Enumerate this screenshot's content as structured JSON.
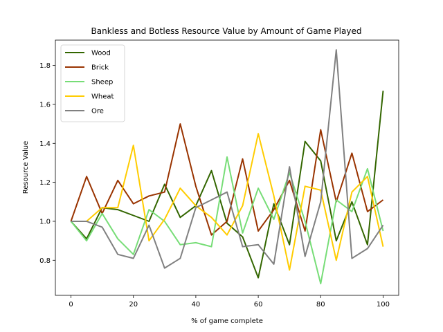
{
  "chart_data": {
    "type": "line",
    "title": "Bankless and Botless Resource Value by Amount of Game Played",
    "xlabel": "% of game complete",
    "ylabel": "Resource Value",
    "xlim": [
      -5,
      105
    ],
    "ylim": [
      0.62,
      1.93
    ],
    "xticks": [
      0,
      20,
      40,
      60,
      80,
      100
    ],
    "yticks": [
      0.8,
      1.0,
      1.2,
      1.4,
      1.6,
      1.8
    ],
    "ytick_labels": [
      "0.8",
      "1.0",
      "1.2",
      "1.4",
      "1.6",
      "1.8"
    ],
    "grid": false,
    "legend_position": "top-left",
    "x": [
      0,
      5,
      10,
      15,
      20,
      25,
      30,
      35,
      40,
      45,
      50,
      55,
      60,
      65,
      70,
      75,
      80,
      85,
      90,
      95,
      100
    ],
    "series": [
      {
        "name": "Wood",
        "color": "#336600",
        "values": [
          1.0,
          0.91,
          1.07,
          1.06,
          1.03,
          1.0,
          1.19,
          1.02,
          1.08,
          1.26,
          0.99,
          0.92,
          0.71,
          1.09,
          0.88,
          1.41,
          1.31,
          0.9,
          1.1,
          0.88,
          1.67
        ]
      },
      {
        "name": "Brick",
        "color": "#993300",
        "values": [
          1.0,
          1.23,
          1.04,
          1.21,
          1.09,
          1.13,
          1.15,
          1.5,
          1.18,
          0.93,
          1.0,
          1.32,
          0.95,
          1.06,
          1.21,
          0.95,
          1.47,
          1.1,
          1.35,
          1.05,
          1.11
        ]
      },
      {
        "name": "Sheep",
        "color": "#77dd77",
        "values": [
          1.0,
          0.9,
          1.04,
          0.91,
          0.83,
          1.06,
          1.0,
          0.88,
          0.89,
          0.87,
          1.33,
          0.94,
          1.17,
          1.01,
          1.25,
          1.0,
          0.68,
          1.11,
          1.05,
          1.27,
          0.95
        ]
      },
      {
        "name": "Wheat",
        "color": "#ffcc00",
        "values": [
          1.0,
          1.0,
          1.07,
          1.07,
          1.39,
          0.9,
          1.01,
          1.17,
          1.08,
          1.02,
          0.93,
          1.08,
          1.45,
          1.13,
          0.75,
          1.18,
          1.16,
          0.8,
          1.15,
          1.23,
          0.87
        ]
      },
      {
        "name": "Ore",
        "color": "#808080",
        "values": [
          1.0,
          1.0,
          0.97,
          0.83,
          0.81,
          0.98,
          0.76,
          0.81,
          1.07,
          1.11,
          1.15,
          0.87,
          0.88,
          0.78,
          1.28,
          0.82,
          1.1,
          1.88,
          0.81,
          0.86,
          0.98
        ]
      }
    ]
  }
}
